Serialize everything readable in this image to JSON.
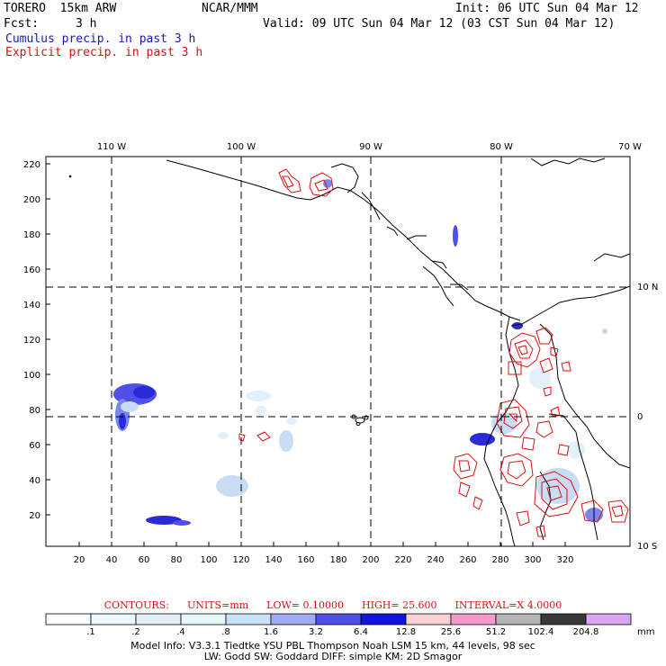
{
  "header": {
    "model": "TORERO  15km ARW",
    "org": "NCAR/MMM",
    "init": "Init: 06 UTC Sun 04 Mar 12",
    "fcst_label": "Fcst:",
    "fcst_value": "3 h",
    "valid": "Valid: 09 UTC Sun 04 Mar 12 (03 CST Sun 04 Mar 12)",
    "cumulus": "Cumulus precip. in past 3 h",
    "explicit": "Explicit precip. in past 3 h"
  },
  "map": {
    "lon_labels": [
      "110 W",
      "100 W",
      "90 W",
      "80 W",
      "70 W"
    ],
    "lat_labels": [
      "10 N",
      "0",
      "10 S"
    ],
    "y_ticks": [
      "220",
      "200",
      "180",
      "160",
      "140",
      "120",
      "100",
      "80",
      "60",
      "40",
      "20"
    ],
    "x_ticks": [
      "20",
      "40",
      "60",
      "80",
      "100",
      "120",
      "140",
      "160",
      "180",
      "200",
      "220",
      "240",
      "260",
      "280",
      "300",
      "320"
    ],
    "colors": {
      "explicit": "#d81010",
      "cumulus_light": "#c8dcf4",
      "cumulus_mid": "#7a86ee",
      "cumulus_dark": "#2a2ad8"
    }
  },
  "contours": {
    "label": "CONTOURS:",
    "units": "UNITS=mm",
    "low": "LOW= 0.10000",
    "high": "HIGH=  25.600",
    "interval": "INTERVAL=X  4.0000"
  },
  "colorbar": {
    "labels": [
      ".1",
      ".2",
      ".4",
      ".8",
      "1.6",
      "3.2",
      "6.4",
      "12.8",
      "25.6",
      "51.2",
      "102.4",
      "204.8"
    ],
    "unit": "mm",
    "colors": [
      "#ffffff",
      "#f0f8ff",
      "#e2f0fa",
      "#e6f7f7",
      "#c8e0f8",
      "#a0aaf0",
      "#5050e8",
      "#1414e0",
      "#f8d2d2",
      "#f49ac8",
      "#b4b4b4",
      "#383838",
      "#d8a4f4"
    ]
  },
  "footer": {
    "line1": "Model Info: V3.3.1    Tiedtke YSU PBL   Thompson     Noah LSM  15 km,    44 levels,    98 sec",
    "line2": "LW: Godd SW: Goddard DIFF: simple KM: 2D Smagor"
  }
}
